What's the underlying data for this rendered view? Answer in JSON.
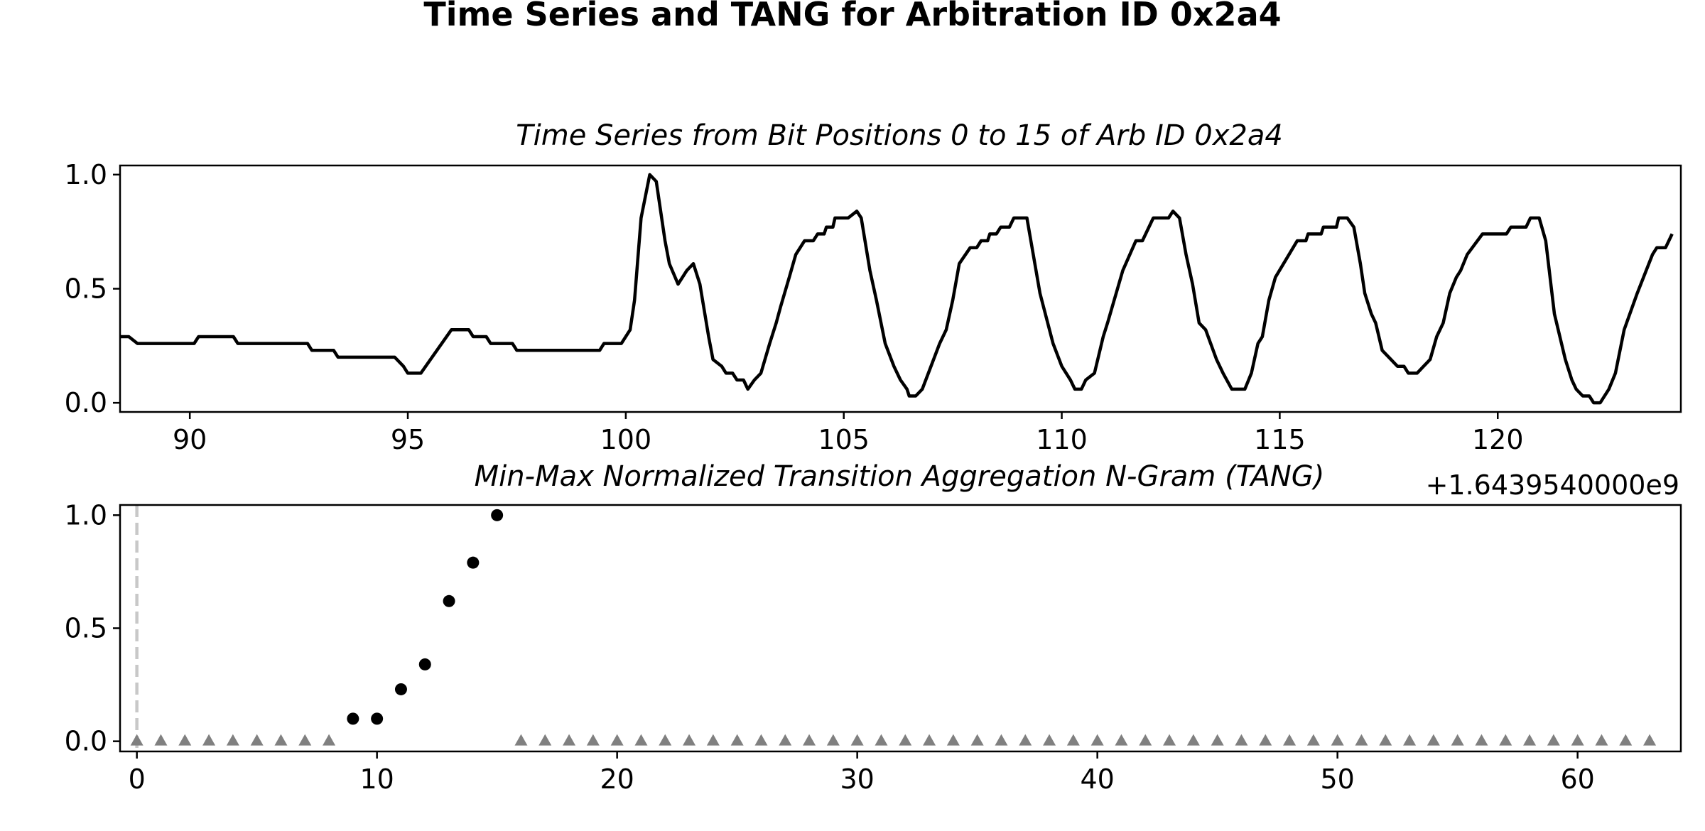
{
  "figure_title": "Time Series and TANG for Arbitration ID 0x2a4",
  "chart_data": [
    {
      "type": "line",
      "title": "Time Series from Bit Positions 0 to 15 of Arb ID 0x2a4",
      "xlabel": "",
      "ylabel": "",
      "x_offset_label": "+1.6439540000e9",
      "xlim": [
        88.4,
        124.2
      ],
      "ylim": [
        -0.04,
        1.04
      ],
      "x_ticks": [
        90,
        95,
        100,
        105,
        110,
        115,
        120
      ],
      "y_ticks": [
        "0.0",
        "0.5",
        "1.0"
      ],
      "grid": false,
      "series": [
        {
          "color": "#000000",
          "points": [
            [
              88.4,
              0.29
            ],
            [
              88.6,
              0.29
            ],
            [
              88.8,
              0.26
            ],
            [
              90.1,
              0.26
            ],
            [
              90.2,
              0.29
            ],
            [
              91.0,
              0.29
            ],
            [
              91.1,
              0.26
            ],
            [
              92.7,
              0.26
            ],
            [
              92.8,
              0.23
            ],
            [
              93.3,
              0.23
            ],
            [
              93.4,
              0.2
            ],
            [
              94.7,
              0.2
            ],
            [
              94.9,
              0.16
            ],
            [
              95.0,
              0.13
            ],
            [
              95.3,
              0.13
            ],
            [
              96.0,
              0.32
            ],
            [
              96.4,
              0.32
            ],
            [
              96.5,
              0.29
            ],
            [
              96.8,
              0.29
            ],
            [
              96.9,
              0.26
            ],
            [
              97.4,
              0.26
            ],
            [
              97.5,
              0.23
            ],
            [
              99.4,
              0.23
            ],
            [
              99.5,
              0.26
            ],
            [
              99.9,
              0.26
            ],
            [
              100.1,
              0.32
            ],
            [
              100.2,
              0.45
            ],
            [
              100.35,
              0.81
            ],
            [
              100.55,
              1.0
            ],
            [
              100.7,
              0.97
            ],
            [
              100.9,
              0.71
            ],
            [
              101.0,
              0.61
            ],
            [
              101.2,
              0.52
            ],
            [
              101.4,
              0.58
            ],
            [
              101.55,
              0.61
            ],
            [
              101.7,
              0.52
            ],
            [
              101.9,
              0.29
            ],
            [
              102.0,
              0.19
            ],
            [
              102.2,
              0.16
            ],
            [
              102.3,
              0.13
            ],
            [
              102.45,
              0.13
            ],
            [
              102.55,
              0.1
            ],
            [
              102.7,
              0.1
            ],
            [
              102.8,
              0.06
            ],
            [
              102.95,
              0.1
            ],
            [
              103.1,
              0.13
            ],
            [
              103.3,
              0.26
            ],
            [
              103.45,
              0.35
            ],
            [
              103.55,
              0.42
            ],
            [
              103.75,
              0.55
            ],
            [
              103.9,
              0.65
            ],
            [
              104.1,
              0.71
            ],
            [
              104.3,
              0.71
            ],
            [
              104.4,
              0.74
            ],
            [
              104.55,
              0.74
            ],
            [
              104.6,
              0.77
            ],
            [
              104.75,
              0.77
            ],
            [
              104.8,
              0.81
            ],
            [
              105.1,
              0.81
            ],
            [
              105.3,
              0.84
            ],
            [
              105.4,
              0.81
            ],
            [
              105.6,
              0.58
            ],
            [
              105.75,
              0.45
            ],
            [
              105.95,
              0.26
            ],
            [
              106.15,
              0.16
            ],
            [
              106.3,
              0.1
            ],
            [
              106.45,
              0.06
            ],
            [
              106.5,
              0.03
            ],
            [
              106.65,
              0.03
            ],
            [
              106.8,
              0.06
            ],
            [
              107.0,
              0.16
            ],
            [
              107.2,
              0.26
            ],
            [
              107.35,
              0.32
            ],
            [
              107.5,
              0.45
            ],
            [
              107.65,
              0.61
            ],
            [
              107.9,
              0.68
            ],
            [
              108.05,
              0.68
            ],
            [
              108.15,
              0.71
            ],
            [
              108.3,
              0.71
            ],
            [
              108.35,
              0.74
            ],
            [
              108.5,
              0.74
            ],
            [
              108.6,
              0.77
            ],
            [
              108.8,
              0.77
            ],
            [
              108.9,
              0.81
            ],
            [
              109.2,
              0.81
            ],
            [
              109.5,
              0.48
            ],
            [
              109.8,
              0.26
            ],
            [
              110.0,
              0.16
            ],
            [
              110.2,
              0.1
            ],
            [
              110.3,
              0.06
            ],
            [
              110.45,
              0.06
            ],
            [
              110.55,
              0.1
            ],
            [
              110.75,
              0.13
            ],
            [
              110.95,
              0.29
            ],
            [
              111.05,
              0.35
            ],
            [
              111.4,
              0.58
            ],
            [
              111.7,
              0.71
            ],
            [
              111.85,
              0.71
            ],
            [
              112.1,
              0.81
            ],
            [
              112.45,
              0.81
            ],
            [
              112.55,
              0.84
            ],
            [
              112.7,
              0.81
            ],
            [
              112.85,
              0.65
            ],
            [
              113.0,
              0.52
            ],
            [
              113.15,
              0.35
            ],
            [
              113.3,
              0.32
            ],
            [
              113.55,
              0.19
            ],
            [
              113.7,
              0.13
            ],
            [
              113.9,
              0.06
            ],
            [
              114.2,
              0.06
            ],
            [
              114.35,
              0.13
            ],
            [
              114.5,
              0.26
            ],
            [
              114.6,
              0.29
            ],
            [
              114.75,
              0.45
            ],
            [
              114.9,
              0.55
            ],
            [
              115.4,
              0.71
            ],
            [
              115.6,
              0.71
            ],
            [
              115.65,
              0.74
            ],
            [
              115.95,
              0.74
            ],
            [
              116.0,
              0.77
            ],
            [
              116.3,
              0.77
            ],
            [
              116.35,
              0.81
            ],
            [
              116.55,
              0.81
            ],
            [
              116.7,
              0.77
            ],
            [
              116.85,
              0.61
            ],
            [
              116.95,
              0.48
            ],
            [
              117.1,
              0.39
            ],
            [
              117.2,
              0.35
            ],
            [
              117.35,
              0.23
            ],
            [
              117.55,
              0.19
            ],
            [
              117.7,
              0.16
            ],
            [
              117.85,
              0.16
            ],
            [
              117.95,
              0.13
            ],
            [
              118.15,
              0.13
            ],
            [
              118.3,
              0.16
            ],
            [
              118.45,
              0.19
            ],
            [
              118.6,
              0.29
            ],
            [
              118.75,
              0.35
            ],
            [
              118.9,
              0.48
            ],
            [
              119.05,
              0.55
            ],
            [
              119.15,
              0.58
            ],
            [
              119.3,
              0.65
            ],
            [
              119.65,
              0.74
            ],
            [
              120.2,
              0.74
            ],
            [
              120.3,
              0.77
            ],
            [
              120.65,
              0.77
            ],
            [
              120.75,
              0.81
            ],
            [
              120.95,
              0.81
            ],
            [
              121.1,
              0.71
            ],
            [
              121.3,
              0.39
            ],
            [
              121.55,
              0.19
            ],
            [
              121.7,
              0.1
            ],
            [
              121.8,
              0.06
            ],
            [
              121.95,
              0.03
            ],
            [
              122.1,
              0.03
            ],
            [
              122.2,
              0.0
            ],
            [
              122.35,
              0.0
            ],
            [
              122.55,
              0.06
            ],
            [
              122.7,
              0.13
            ],
            [
              122.9,
              0.32
            ],
            [
              123.2,
              0.48
            ],
            [
              123.55,
              0.65
            ],
            [
              123.65,
              0.68
            ],
            [
              123.85,
              0.68
            ],
            [
              124.0,
              0.74
            ]
          ]
        }
      ]
    },
    {
      "type": "scatter",
      "title": "Min-Max Normalized Transition Aggregation N-Gram (TANG)",
      "xlabel": "",
      "ylabel": "",
      "xlim": [
        -0.7,
        64.3
      ],
      "ylim": [
        -0.045,
        1.045
      ],
      "x_ticks": [
        0,
        10,
        20,
        30,
        40,
        50,
        60
      ],
      "y_ticks": [
        "0.0",
        "0.5",
        "1.0"
      ],
      "grid": false,
      "vertical_reference_line": {
        "x": 0,
        "style": "dashed",
        "color": "#c8c8c8"
      },
      "series": [
        {
          "marker": "circle",
          "color": "#000000",
          "x": [
            9,
            10,
            11,
            12,
            13,
            14,
            15
          ],
          "y": [
            0.1,
            0.1,
            0.23,
            0.34,
            0.62,
            0.79,
            1.0
          ]
        },
        {
          "marker": "triangle",
          "color": "#808080",
          "x": [
            0,
            1,
            2,
            3,
            4,
            5,
            6,
            7,
            8,
            16,
            17,
            18,
            19,
            20,
            21,
            22,
            23,
            24,
            25,
            26,
            27,
            28,
            29,
            30,
            31,
            32,
            33,
            34,
            35,
            36,
            37,
            38,
            39,
            40,
            41,
            42,
            43,
            44,
            45,
            46,
            47,
            48,
            49,
            50,
            51,
            52,
            53,
            54,
            55,
            56,
            57,
            58,
            59,
            60,
            61,
            62,
            63
          ],
          "y": [
            0,
            0,
            0,
            0,
            0,
            0,
            0,
            0,
            0,
            0,
            0,
            0,
            0,
            0,
            0,
            0,
            0,
            0,
            0,
            0,
            0,
            0,
            0,
            0,
            0,
            0,
            0,
            0,
            0,
            0,
            0,
            0,
            0,
            0,
            0,
            0,
            0,
            0,
            0,
            0,
            0,
            0,
            0,
            0,
            0,
            0,
            0,
            0,
            0,
            0,
            0,
            0,
            0,
            0,
            0,
            0,
            0
          ]
        }
      ]
    }
  ]
}
